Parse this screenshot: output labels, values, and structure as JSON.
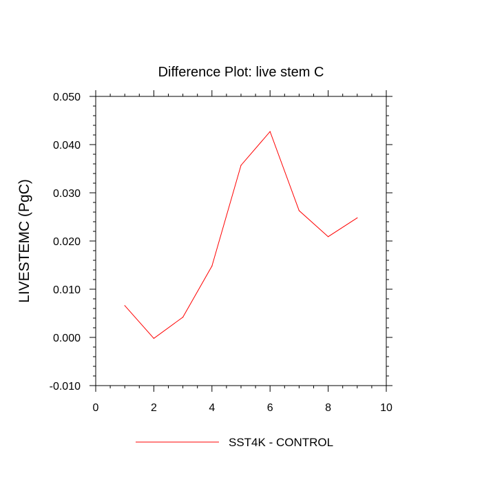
{
  "chart_data": {
    "type": "line",
    "title": "Difference Plot: live stem C",
    "xlabel": "",
    "ylabel": "LIVESTEMC  (PgC)",
    "xlim": [
      0,
      10
    ],
    "ylim": [
      -0.01,
      0.05
    ],
    "x_ticks": [
      "0",
      "2",
      "4",
      "6",
      "8",
      "10"
    ],
    "y_ticks": [
      "-0.010",
      "0.000",
      "0.010",
      "0.020",
      "0.030",
      "0.040",
      "0.050"
    ],
    "grid": false,
    "legend_position": "bottom",
    "series": [
      {
        "name": "SST4K - CONTROL",
        "color": "#ff0000",
        "x": [
          1,
          2,
          3,
          4,
          5,
          6,
          7,
          8,
          9
        ],
        "values": [
          0.0066,
          -0.0002,
          0.0042,
          0.0148,
          0.0357,
          0.0427,
          0.0263,
          0.0209,
          0.0248
        ]
      }
    ]
  }
}
